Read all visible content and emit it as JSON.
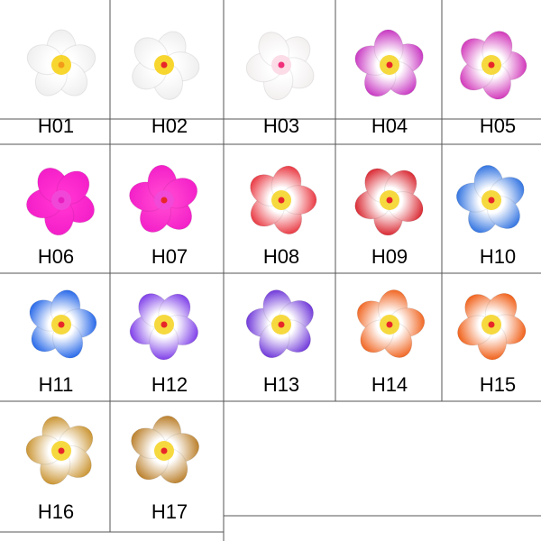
{
  "cells": [
    "H01",
    "H02",
    "H03",
    "H04",
    "H05",
    "H06",
    "H07",
    "H08",
    "H09",
    "H10",
    "H11",
    "H12",
    "H13",
    "H14",
    "H15",
    "H16",
    "H17"
  ]
}
